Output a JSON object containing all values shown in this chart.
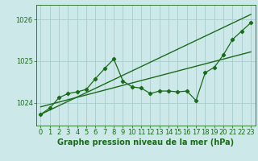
{
  "xlabel": "Graphe pression niveau de la mer (hPa)",
  "background_color": "#cce8e8",
  "grid_color": "#aacccc",
  "line_color": "#1a6b1a",
  "xlim": [
    -0.5,
    23.5
  ],
  "ylim": [
    1023.45,
    1026.35
  ],
  "yticks": [
    1024,
    1025,
    1026
  ],
  "xticks": [
    0,
    1,
    2,
    3,
    4,
    5,
    6,
    7,
    8,
    9,
    10,
    11,
    12,
    13,
    14,
    15,
    16,
    17,
    18,
    19,
    20,
    21,
    22,
    23
  ],
  "line1_x": [
    0,
    1,
    2,
    3,
    4,
    5,
    6,
    7,
    8,
    9,
    10,
    11,
    12,
    13,
    14,
    15,
    16,
    17,
    18,
    19,
    20,
    21,
    22,
    23
  ],
  "line1_y": [
    1023.72,
    1023.87,
    1024.12,
    1024.22,
    1024.26,
    1024.32,
    1024.58,
    1024.82,
    1025.05,
    1024.52,
    1024.38,
    1024.35,
    1024.22,
    1024.28,
    1024.28,
    1024.26,
    1024.28,
    1024.05,
    1024.72,
    1024.85,
    1025.15,
    1025.52,
    1025.72,
    1025.92
  ],
  "trend1_x": [
    0,
    23
  ],
  "trend1_y": [
    1023.72,
    1026.12
  ],
  "trend2_x": [
    0,
    23
  ],
  "trend2_y": [
    1023.9,
    1025.22
  ],
  "font_color": "#1a6b1a",
  "tick_labelsize": 6,
  "xlabel_fontsize": 7
}
